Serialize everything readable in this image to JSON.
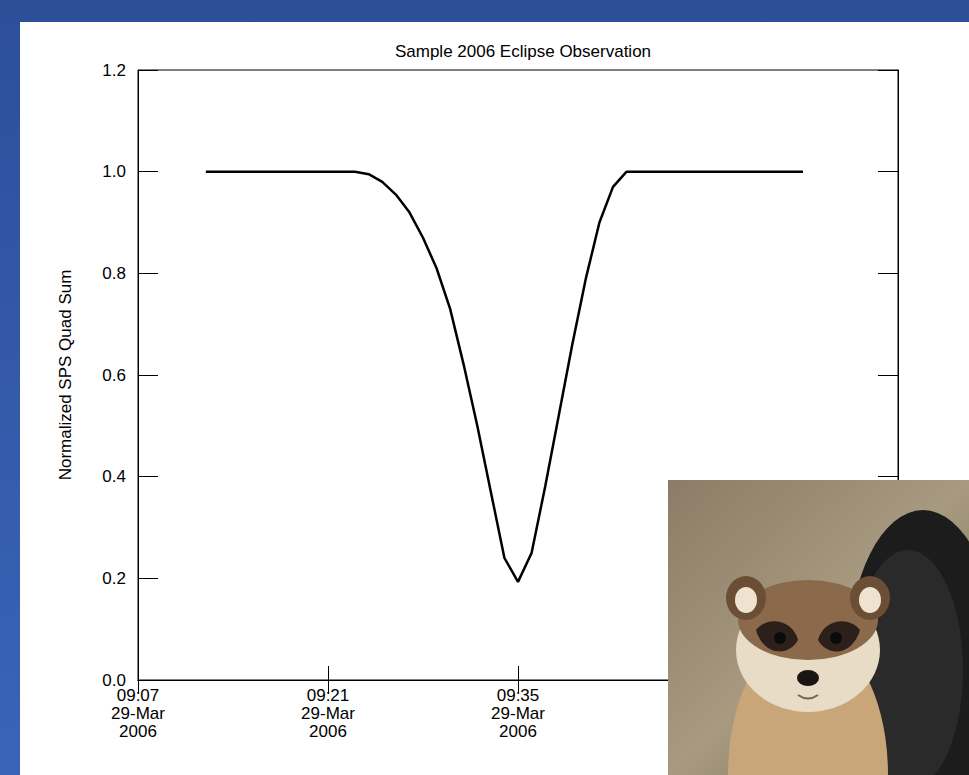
{
  "chart_data": {
    "type": "line",
    "title": "Sample 2006 Eclipse Observation",
    "y_label": "Normalized SPS Quad Sum",
    "color": "#000000",
    "grid": false,
    "x": [
      "2006-03-29 09:12",
      "2006-03-29 09:13",
      "2006-03-29 09:14",
      "2006-03-29 09:15",
      "2006-03-29 09:16",
      "2006-03-29 09:17",
      "2006-03-29 09:18",
      "2006-03-29 09:19",
      "2006-03-29 09:20",
      "2006-03-29 09:21",
      "2006-03-29 09:22",
      "2006-03-29 09:23",
      "2006-03-29 09:24",
      "2006-03-29 09:25",
      "2006-03-29 09:26",
      "2006-03-29 09:27",
      "2006-03-29 09:28",
      "2006-03-29 09:29",
      "2006-03-29 09:30",
      "2006-03-29 09:31",
      "2006-03-29 09:32",
      "2006-03-29 09:33",
      "2006-03-29 09:34",
      "2006-03-29 09:35",
      "2006-03-29 09:36",
      "2006-03-29 09:37",
      "2006-03-29 09:38",
      "2006-03-29 09:39",
      "2006-03-29 09:40",
      "2006-03-29 09:41",
      "2006-03-29 09:42",
      "2006-03-29 09:43",
      "2006-03-29 09:44",
      "2006-03-29 09:45",
      "2006-03-29 09:46",
      "2006-03-29 09:47",
      "2006-03-29 09:48",
      "2006-03-29 09:49",
      "2006-03-29 09:50",
      "2006-03-29 09:51",
      "2006-03-29 09:52",
      "2006-03-29 09:53",
      "2006-03-29 09:54",
      "2006-03-29 09:55",
      "2006-03-29 09:56"
    ],
    "values": [
      1.0,
      1.0,
      1.0,
      1.0,
      1.0,
      1.0,
      1.0,
      1.0,
      1.0,
      1.0,
      1.0,
      1.0,
      0.995,
      0.98,
      0.955,
      0.92,
      0.87,
      0.81,
      0.73,
      0.62,
      0.5,
      0.37,
      0.24,
      0.193,
      0.25,
      0.38,
      0.52,
      0.66,
      0.79,
      0.9,
      0.97,
      1.0,
      1.0,
      1.0,
      1.0,
      1.0,
      1.0,
      1.0,
      1.0,
      1.0,
      1.0,
      1.0,
      1.0,
      1.0,
      1.0
    ],
    "xlim": [
      "2006-03-29 09:07",
      "2006-03-29 10:03"
    ],
    "xticks": [
      {
        "value": "2006-03-29 09:07",
        "label": "09:07\n29-Mar\n2006"
      },
      {
        "value": "2006-03-29 09:21",
        "label": "09:21\n29-Mar\n2006"
      },
      {
        "value": "2006-03-29 09:35",
        "label": "09:35\n29-Mar\n2006"
      }
    ],
    "ylim": [
      0,
      1.2
    ],
    "yticks": [
      {
        "value": 0,
        "label": "0.0"
      },
      0.2,
      0.4,
      0.6,
      0.8,
      {
        "value": 1,
        "label": "1.0"
      },
      1.2,
      {
        "value": 1.2,
        "label": "1.2"
      }
    ]
  }
}
